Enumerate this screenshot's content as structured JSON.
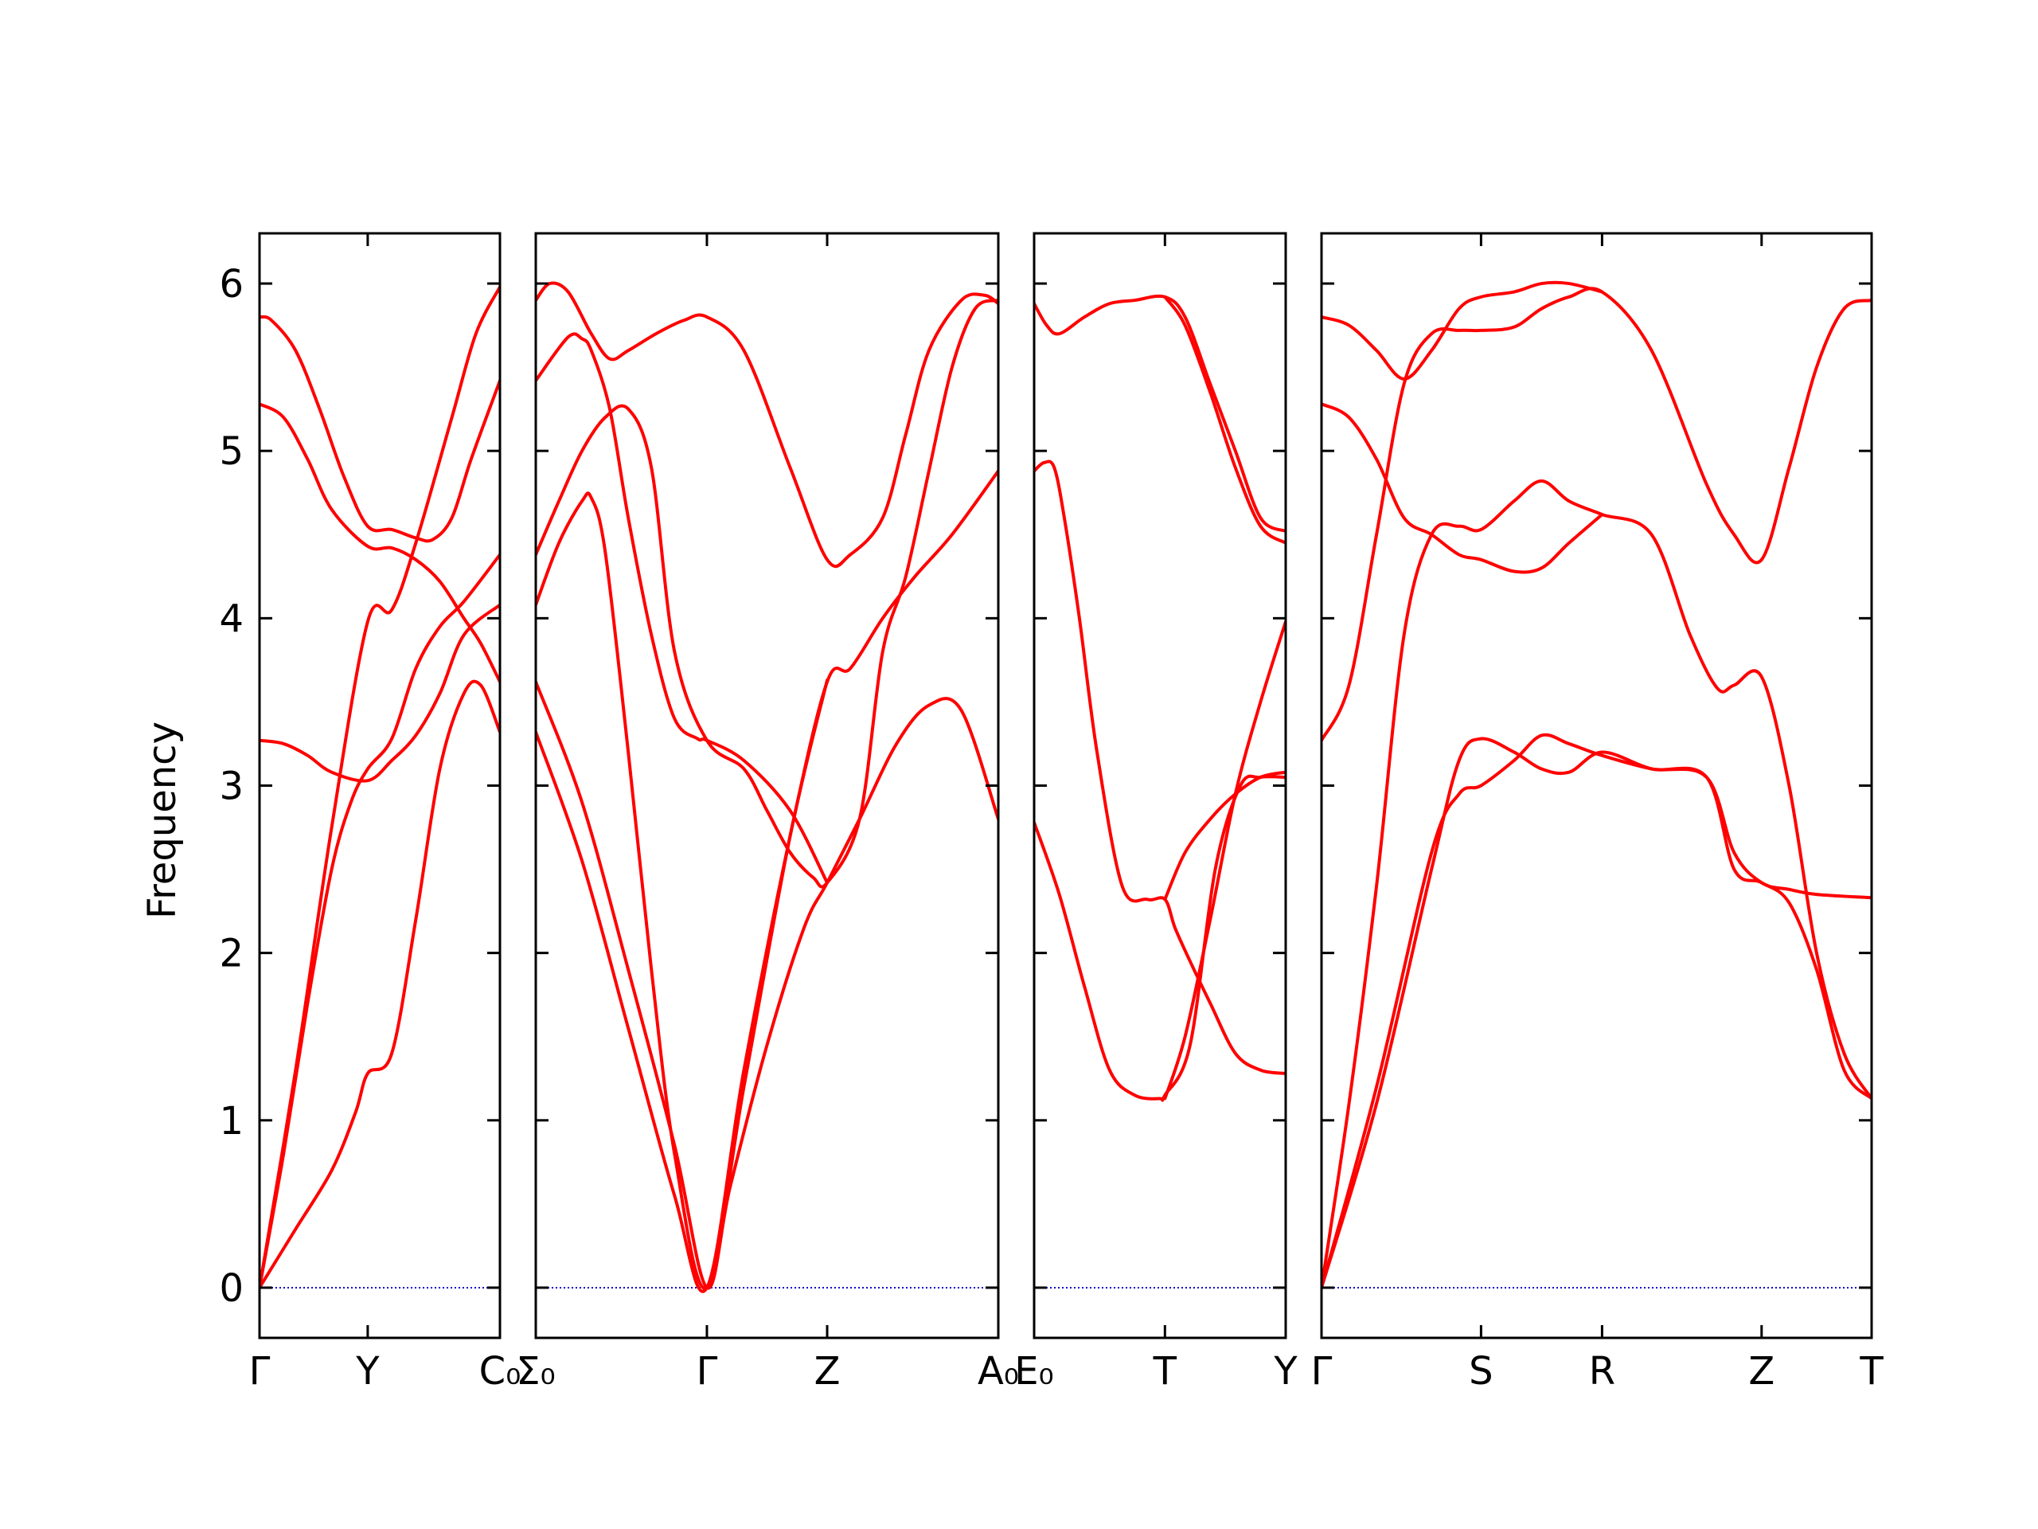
{
  "chart_data": {
    "type": "line",
    "ylabel": "Frequency",
    "ylim": [
      -0.3,
      6.3
    ],
    "yticks": [
      0,
      1,
      2,
      3,
      4,
      5,
      6
    ],
    "grid": false,
    "colors": {
      "band": "#ff0000",
      "zero_line": "#0000cc",
      "axes": "#000000"
    },
    "panels": [
      {
        "xlim": [
          0,
          1
        ],
        "ticks": [
          0,
          0.45,
          1
        ],
        "tick_labels": [
          "Γ",
          "Y",
          "C₀"
        ],
        "bands": [
          {
            "x": [
              0,
              0.15,
              0.3,
              0.4,
              0.45,
              0.55,
              0.65,
              0.75,
              0.85,
              0.92,
              1.0
            ],
            "y": [
              0,
              0.35,
              0.7,
              1.05,
              1.28,
              1.4,
              2.2,
              3.1,
              3.55,
              3.6,
              3.32
            ]
          },
          {
            "x": [
              0,
              0.1,
              0.2,
              0.3,
              0.38,
              0.45,
              0.55,
              0.65,
              0.75,
              0.85,
              1.0
            ],
            "y": [
              0,
              0.8,
              1.7,
              2.5,
              2.9,
              3.1,
              3.28,
              3.7,
              3.95,
              4.1,
              4.38
            ]
          },
          {
            "x": [
              0,
              0.15,
              0.3,
              0.45,
              0.55,
              0.65,
              0.8,
              0.9,
              1.0
            ],
            "y": [
              0,
              1.3,
              2.75,
              3.98,
              4.05,
              4.45,
              5.2,
              5.7,
              5.98
            ]
          },
          {
            "x": [
              0,
              0.1,
              0.2,
              0.3,
              0.45,
              0.55,
              0.65,
              0.75,
              0.85,
              1.0
            ],
            "y": [
              3.27,
              3.25,
              3.18,
              3.08,
              3.03,
              3.15,
              3.3,
              3.55,
              3.9,
              4.08
            ]
          },
          {
            "x": [
              0,
              0.1,
              0.2,
              0.3,
              0.45,
              0.55,
              0.65,
              0.75,
              0.85,
              0.92,
              1.0
            ],
            "y": [
              5.28,
              5.2,
              4.95,
              4.65,
              4.43,
              4.42,
              4.35,
              4.22,
              4.0,
              3.85,
              3.62
            ]
          },
          {
            "x": [
              0,
              0.05,
              0.15,
              0.25,
              0.35,
              0.45,
              0.55,
              0.65,
              0.72,
              0.8,
              0.88,
              1.0
            ],
            "y": [
              5.8,
              5.78,
              5.6,
              5.25,
              4.85,
              4.55,
              4.53,
              4.48,
              4.47,
              4.6,
              4.95,
              5.42
            ]
          }
        ]
      },
      {
        "xlim": [
          0,
          1
        ],
        "ticks": [
          0,
          0.37,
          0.63,
          1
        ],
        "tick_labels": [
          "Σ₀",
          "Γ",
          "Z",
          "A₀"
        ],
        "bands": [
          {
            "x": [
              0,
              0.1,
              0.2,
              0.3,
              0.37,
              0.42,
              0.5,
              0.58,
              0.63,
              0.7,
              0.78,
              0.85,
              0.92,
              1.0
            ],
            "y": [
              3.62,
              2.9,
              1.9,
              0.85,
              0,
              0.6,
              1.45,
              2.15,
              2.42,
              2.8,
              3.25,
              3.48,
              3.45,
              2.8
            ]
          },
          {
            "x": [
              0,
              0.1,
              0.2,
              0.3,
              0.37,
              0.45,
              0.55,
              0.63,
              0.68,
              0.75,
              0.82,
              0.9,
              1.0
            ],
            "y": [
              3.32,
              2.55,
              1.55,
              0.55,
              0,
              1.3,
              2.7,
              3.62,
              3.7,
              4.0,
              4.25,
              4.5,
              4.88
            ]
          },
          {
            "x": [
              0,
              0.05,
              0.1,
              0.12,
              0.15,
              0.2,
              0.25,
              0.3,
              0.37,
              0.45,
              0.55,
              0.63
            ],
            "y": [
              4.08,
              4.45,
              4.7,
              4.72,
              4.4,
              3.2,
              1.9,
              0.8,
              0,
              1.2,
              2.7,
              3.63
            ]
          },
          {
            "x": [
              0,
              0.05,
              0.1,
              0.15,
              0.2,
              0.25,
              0.3,
              0.37,
              0.45,
              0.5,
              0.55,
              0.6,
              0.63,
              0.7,
              0.75,
              0.8,
              0.85,
              0.9,
              0.95,
              1.0
            ],
            "y": [
              4.38,
              4.7,
              5.0,
              5.2,
              5.25,
              4.9,
              3.8,
              3.27,
              3.1,
              2.85,
              2.6,
              2.45,
              2.42,
              2.8,
              3.8,
              4.25,
              4.88,
              5.5,
              5.85,
              5.9
            ]
          },
          {
            "x": [
              0,
              0.07,
              0.1,
              0.12,
              0.16,
              0.2,
              0.25,
              0.3,
              0.35,
              0.37,
              0.45,
              0.55,
              0.63
            ],
            "y": [
              5.42,
              5.68,
              5.67,
              5.6,
              5.25,
              4.6,
              3.9,
              3.4,
              3.28,
              3.27,
              3.15,
              2.85,
              2.42
            ]
          },
          {
            "x": [
              0,
              0.03,
              0.07,
              0.12,
              0.16,
              0.2,
              0.26,
              0.32,
              0.37,
              0.45,
              0.55,
              0.63,
              0.68,
              0.75,
              0.8,
              0.85,
              0.92,
              0.97,
              1.0
            ],
            "y": [
              5.9,
              6.0,
              5.95,
              5.7,
              5.55,
              5.6,
              5.7,
              5.78,
              5.8,
              5.6,
              4.9,
              4.35,
              4.38,
              4.6,
              5.1,
              5.6,
              5.9,
              5.93,
              5.88
            ]
          }
        ]
      },
      {
        "xlim": [
          0,
          1
        ],
        "ticks": [
          0,
          0.52,
          1
        ],
        "tick_labels": [
          "E₀",
          "T",
          "Y"
        ],
        "bands": [
          {
            "x": [
              0,
              0.1,
              0.2,
              0.3,
              0.4,
              0.5,
              0.52,
              0.62,
              0.72,
              0.82,
              0.9,
              1.0
            ],
            "y": [
              2.78,
              2.35,
              1.8,
              1.3,
              1.15,
              1.13,
              1.15,
              1.45,
              2.5,
              3.0,
              3.05,
              3.05
            ]
          },
          {
            "x": [
              0,
              0.04,
              0.08,
              0.12,
              0.18,
              0.25,
              0.35,
              0.45,
              0.52,
              0.56,
              0.62,
              0.7,
              0.8,
              0.9,
              1.0
            ],
            "y": [
              4.88,
              4.93,
              4.9,
              4.6,
              4.0,
              3.2,
              2.4,
              2.32,
              2.32,
              2.15,
              1.95,
              1.7,
              1.4,
              1.3,
              1.28
            ]
          },
          {
            "x": [
              0,
              0.05,
              0.1,
              0.2,
              0.3,
              0.4,
              0.52,
              0.6,
              0.7,
              0.8,
              0.9,
              1.0
            ],
            "y": [
              5.88,
              5.75,
              5.7,
              5.8,
              5.88,
              5.9,
              5.92,
              5.8,
              5.4,
              5.0,
              4.6,
              4.52
            ]
          },
          {
            "x": [
              0.52,
              0.6,
              0.7,
              0.8,
              0.9,
              1.0
            ],
            "y": [
              1.13,
              1.5,
              2.2,
              2.95,
              3.5,
              3.98
            ]
          },
          {
            "x": [
              0.52,
              0.6,
              0.7,
              0.8,
              0.9,
              1.0
            ],
            "y": [
              2.32,
              2.6,
              2.8,
              2.95,
              3.05,
              3.08
            ]
          },
          {
            "x": [
              0.52,
              0.6,
              0.7,
              0.8,
              0.9,
              1.0
            ],
            "y": [
              5.92,
              5.75,
              5.35,
              4.9,
              4.55,
              4.45
            ]
          }
        ]
      },
      {
        "xlim": [
          0,
          1
        ],
        "ticks": [
          0,
          0.29,
          0.51,
          0.8,
          1
        ],
        "tick_labels": [
          "Γ",
          "S",
          "R",
          "Z",
          "T"
        ],
        "bands": [
          {
            "x": [
              0,
              0.1,
              0.2,
              0.25,
              0.29,
              0.35,
              0.4,
              0.45,
              0.51,
              0.6,
              0.7,
              0.75,
              0.8,
              0.85,
              0.9,
              1.0
            ],
            "y": [
              0,
              1.2,
              2.6,
              2.95,
              3.0,
              3.15,
              3.3,
              3.25,
              3.18,
              3.1,
              3.05,
              2.6,
              2.42,
              2.38,
              2.35,
              2.33
            ]
          },
          {
            "x": [
              0,
              0.1,
              0.2,
              0.25,
              0.29,
              0.35,
              0.4,
              0.45,
              0.51,
              0.6,
              0.7,
              0.75,
              0.8,
              0.85,
              0.9,
              0.95,
              1.0
            ],
            "y": [
              0,
              1.1,
              2.5,
              3.15,
              3.28,
              3.2,
              3.1,
              3.08,
              3.2,
              3.1,
              3.05,
              2.5,
              2.42,
              2.3,
              1.9,
              1.3,
              1.13
            ]
          },
          {
            "x": [
              0,
              0.05,
              0.1,
              0.15,
              0.2,
              0.25,
              0.29,
              0.35,
              0.4,
              0.45,
              0.51,
              0.6,
              0.67,
              0.72,
              0.75,
              0.8,
              0.85,
              0.9,
              0.95,
              1.0
            ],
            "y": [
              0,
              1.1,
              2.4,
              3.9,
              4.5,
              4.55,
              4.53,
              4.7,
              4.82,
              4.7,
              4.62,
              4.5,
              3.9,
              3.58,
              3.6,
              3.65,
              3.0,
              2.0,
              1.4,
              1.13
            ]
          },
          {
            "x": [
              0,
              0.05,
              0.1,
              0.15,
              0.2,
              0.25,
              0.29,
              0.35,
              0.4,
              0.45,
              0.51,
              0.6,
              0.7,
              0.75,
              0.8,
              0.85,
              0.9,
              0.95,
              1.0
            ],
            "y": [
              3.27,
              3.6,
              4.5,
              5.4,
              5.7,
              5.72,
              5.72,
              5.74,
              5.85,
              5.92,
              5.95,
              5.6,
              4.8,
              4.5,
              4.35,
              4.9,
              5.5,
              5.85,
              5.9
            ]
          },
          {
            "x": [
              0,
              0.05,
              0.1,
              0.15,
              0.2,
              0.25,
              0.29,
              0.35,
              0.4,
              0.45,
              0.51
            ],
            "y": [
              5.28,
              5.2,
              4.95,
              4.6,
              4.5,
              4.38,
              4.35,
              4.28,
              4.3,
              4.45,
              4.62
            ]
          },
          {
            "x": [
              0,
              0.05,
              0.1,
              0.15,
              0.2,
              0.25,
              0.29,
              0.35,
              0.4,
              0.45,
              0.51
            ],
            "y": [
              5.8,
              5.75,
              5.6,
              5.43,
              5.6,
              5.85,
              5.92,
              5.95,
              6.0,
              6.0,
              5.95
            ]
          }
        ]
      }
    ]
  }
}
